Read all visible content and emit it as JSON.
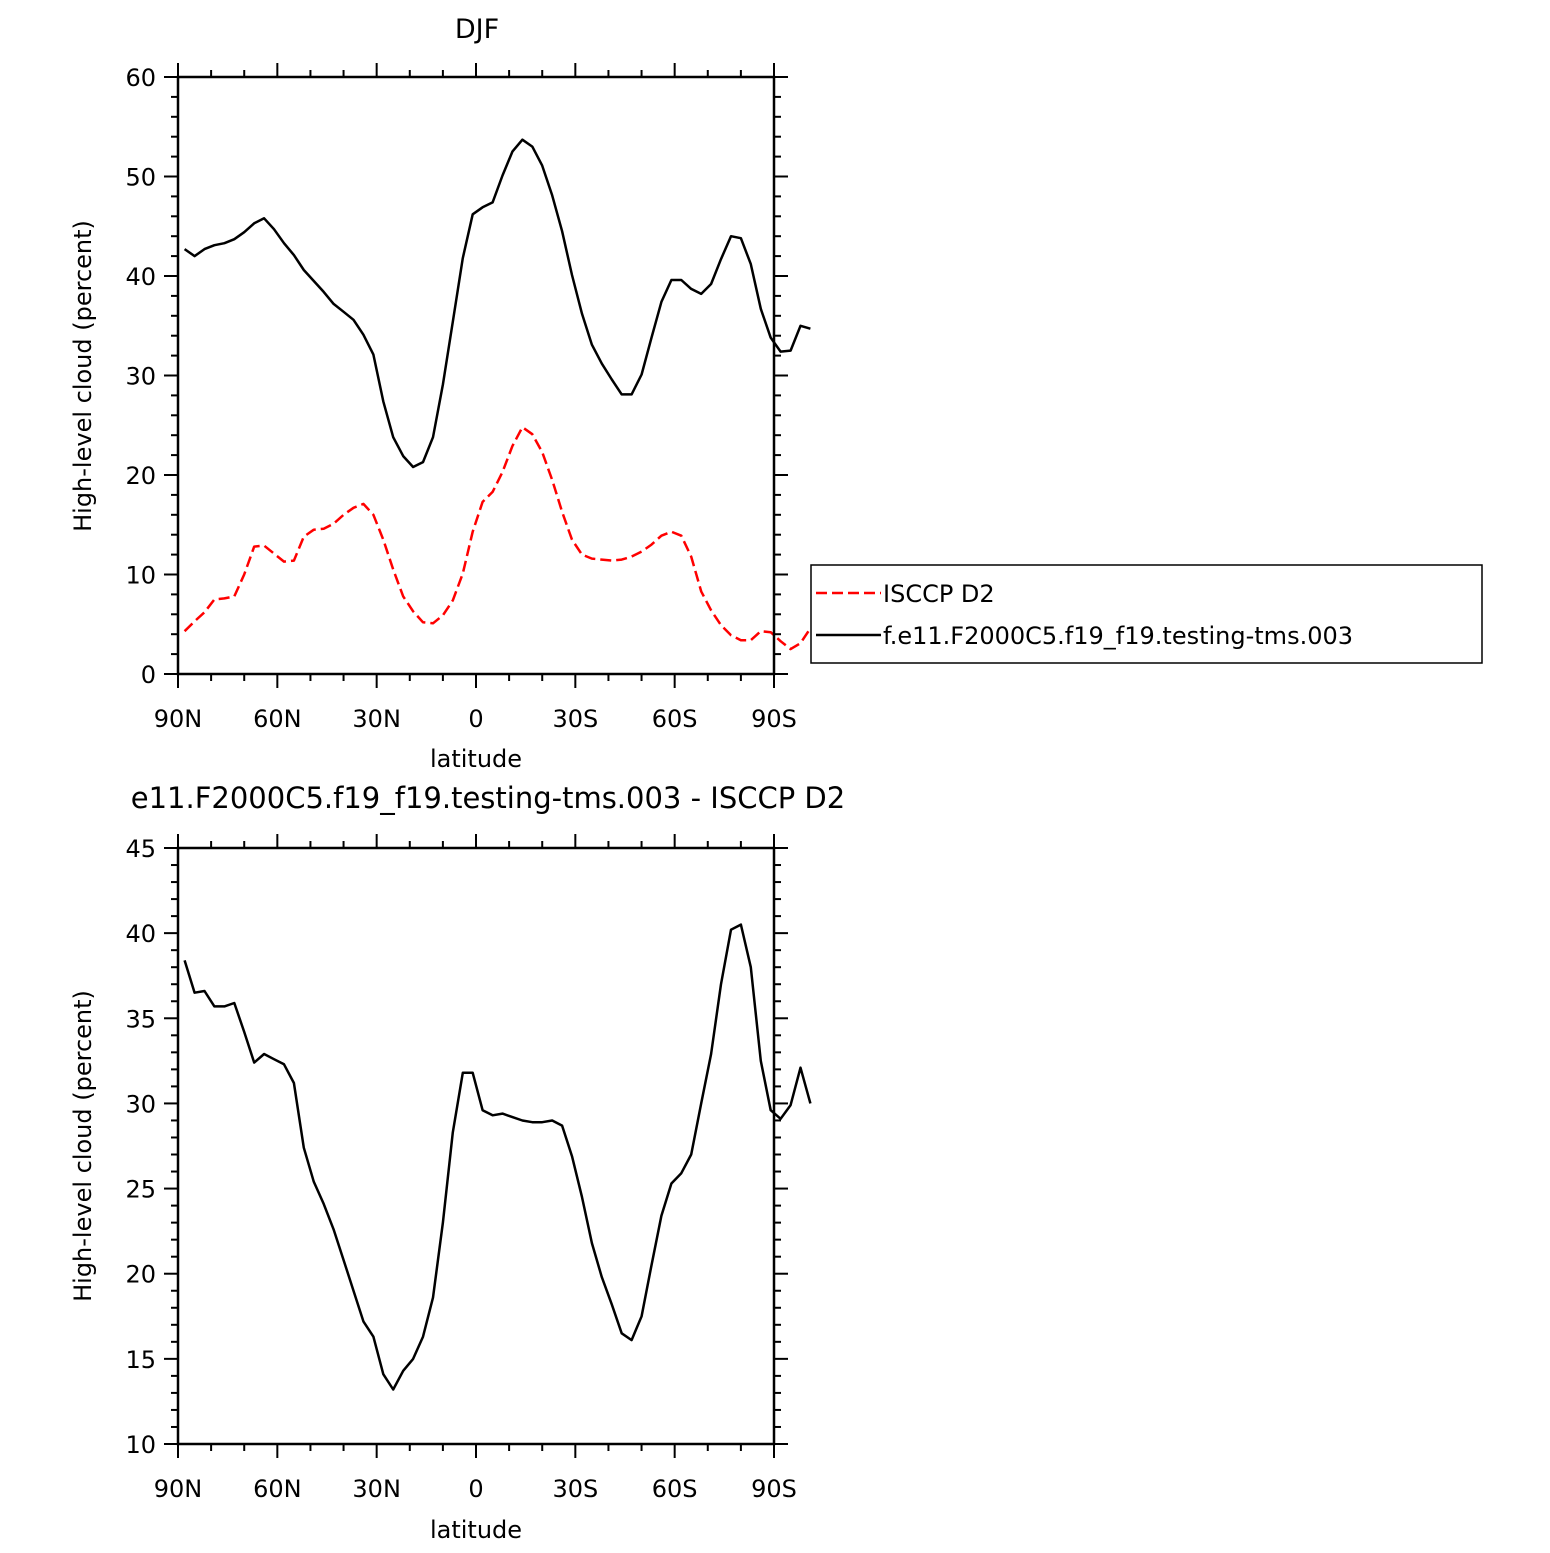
{
  "chart_data": [
    {
      "type": "line",
      "title": "DJF",
      "xlabel": "latitude",
      "ylabel": "High-level cloud (percent)",
      "xlim": [
        90,
        -90
      ],
      "ylim": [
        0,
        60
      ],
      "x_ticks": [
        {
          "value": 90,
          "label": "90N"
        },
        {
          "value": 60,
          "label": "60N"
        },
        {
          "value": 30,
          "label": "30N"
        },
        {
          "value": 0,
          "label": "0"
        },
        {
          "value": -30,
          "label": "30S"
        },
        {
          "value": -60,
          "label": "60S"
        },
        {
          "value": -90,
          "label": "90S"
        }
      ],
      "y_ticks": [
        0,
        10,
        20,
        30,
        40,
        50,
        60
      ],
      "legend_position": "right",
      "series": [
        {
          "name": "ISCCP D2",
          "color": "#ff0000",
          "style": "dashed",
          "points": [
            [
              88,
              4.3
            ],
            [
              85,
              5.3
            ],
            [
              82,
              6.2
            ],
            [
              79,
              7.5
            ],
            [
              76,
              7.6
            ],
            [
              73,
              7.8
            ],
            [
              70,
              10
            ],
            [
              67,
              12.8
            ],
            [
              64,
              12.9
            ],
            [
              61,
              12.1
            ],
            [
              58,
              11.3
            ],
            [
              55,
              11.4
            ],
            [
              52,
              13.8
            ],
            [
              49,
              14.5
            ],
            [
              46,
              14.6
            ],
            [
              43,
              15.1
            ],
            [
              40,
              16
            ],
            [
              37,
              16.7
            ],
            [
              34,
              17.1
            ],
            [
              31,
              16
            ],
            [
              28,
              13.5
            ],
            [
              25,
              10.5
            ],
            [
              22,
              7.8
            ],
            [
              19,
              6.3
            ],
            [
              16,
              5.2
            ],
            [
              13,
              5.1
            ],
            [
              10,
              5.9
            ],
            [
              7,
              7.4
            ],
            [
              4,
              10.1
            ],
            [
              1,
              14.3
            ],
            [
              -2,
              17.3
            ],
            [
              -5,
              18.3
            ],
            [
              -8,
              20.3
            ],
            [
              -11,
              22.9
            ],
            [
              -14,
              24.8
            ],
            [
              -17,
              24.1
            ],
            [
              -20,
              22.3
            ],
            [
              -23,
              19.5
            ],
            [
              -26,
              16.3
            ],
            [
              -29,
              13.5
            ],
            [
              -32,
              12.0
            ],
            [
              -35,
              11.6
            ],
            [
              -38,
              11.5
            ],
            [
              -41,
              11.4
            ],
            [
              -44,
              11.5
            ],
            [
              -47,
              11.8
            ],
            [
              -50,
              12.3
            ],
            [
              -53,
              13.0
            ],
            [
              -56,
              13.9
            ],
            [
              -59,
              14.3
            ],
            [
              -62,
              13.9
            ],
            [
              -65,
              11.8
            ],
            [
              -68,
              8.3
            ],
            [
              -71,
              6.4
            ],
            [
              -74,
              4.9
            ],
            [
              -77,
              3.9
            ],
            [
              -80,
              3.4
            ],
            [
              -83,
              3.4
            ],
            [
              -86,
              4.3
            ],
            [
              -89,
              4.2
            ],
            [
              -92,
              3.3
            ],
            [
              -95,
              2.5
            ],
            [
              -98,
              3.1
            ],
            [
              -101,
              4.6
            ]
          ]
        },
        {
          "name": "f.e11.F2000C5.f19_f19.testing-tms.003",
          "color": "#000000",
          "style": "solid",
          "points": [
            [
              88,
              42.7
            ],
            [
              85,
              42.0
            ],
            [
              82,
              42.7
            ],
            [
              79,
              43.1
            ],
            [
              76,
              43.3
            ],
            [
              73,
              43.7
            ],
            [
              70,
              44.4
            ],
            [
              67,
              45.3
            ],
            [
              64,
              45.8
            ],
            [
              61,
              44.7
            ],
            [
              58,
              43.3
            ],
            [
              55,
              42.1
            ],
            [
              52,
              40.6
            ],
            [
              49,
              39.5
            ],
            [
              46,
              38.4
            ],
            [
              43,
              37.2
            ],
            [
              40,
              36.4
            ],
            [
              37,
              35.6
            ],
            [
              34,
              34.1
            ],
            [
              31,
              32.1
            ],
            [
              28,
              27.4
            ],
            [
              25,
              23.8
            ],
            [
              22,
              21.9
            ],
            [
              19,
              20.8
            ],
            [
              16,
              21.3
            ],
            [
              13,
              23.8
            ],
            [
              10,
              29.1
            ],
            [
              7,
              35.4
            ],
            [
              4,
              41.8
            ],
            [
              1,
              46.2
            ],
            [
              -2,
              46.9
            ],
            [
              -5,
              47.4
            ],
            [
              -8,
              50.1
            ],
            [
              -11,
              52.5
            ],
            [
              -14,
              53.7
            ],
            [
              -17,
              53.0
            ],
            [
              -20,
              51.1
            ],
            [
              -23,
              48.1
            ],
            [
              -26,
              44.5
            ],
            [
              -29,
              40.1
            ],
            [
              -32,
              36.2
            ],
            [
              -35,
              33.1
            ],
            [
              -38,
              31.2
            ],
            [
              -41,
              29.6
            ],
            [
              -44,
              28.1
            ],
            [
              -47,
              28.1
            ],
            [
              -50,
              30.1
            ],
            [
              -53,
              33.8
            ],
            [
              -56,
              37.4
            ],
            [
              -59,
              39.6
            ],
            [
              -62,
              39.6
            ],
            [
              -65,
              38.7
            ],
            [
              -68,
              38.2
            ],
            [
              -71,
              39.2
            ],
            [
              -74,
              41.7
            ],
            [
              -77,
              44.0
            ],
            [
              -80,
              43.8
            ],
            [
              -83,
              41.2
            ],
            [
              -86,
              36.7
            ],
            [
              -89,
              33.8
            ],
            [
              -92,
              32.4
            ],
            [
              -95,
              32.5
            ],
            [
              -98,
              35.0
            ],
            [
              -101,
              34.7
            ]
          ]
        }
      ]
    },
    {
      "type": "line",
      "title": "e11.F2000C5.f19_f19.testing-tms.003 - ISCCP D2",
      "xlabel": "latitude",
      "ylabel": "High-level cloud (percent)",
      "xlim": [
        90,
        -90
      ],
      "ylim": [
        10,
        45
      ],
      "x_ticks": [
        {
          "value": 90,
          "label": "90N"
        },
        {
          "value": 60,
          "label": "60N"
        },
        {
          "value": 30,
          "label": "30N"
        },
        {
          "value": 0,
          "label": "0"
        },
        {
          "value": -30,
          "label": "30S"
        },
        {
          "value": -60,
          "label": "60S"
        },
        {
          "value": -90,
          "label": "90S"
        }
      ],
      "y_ticks": [
        10,
        15,
        20,
        25,
        30,
        35,
        40,
        45
      ],
      "series": [
        {
          "color": "#000000",
          "style": "solid",
          "points": [
            [
              88,
              38.4
            ],
            [
              85,
              36.5
            ],
            [
              82,
              36.6
            ],
            [
              79,
              35.7
            ],
            [
              76,
              35.7
            ],
            [
              73,
              35.9
            ],
            [
              70,
              34.2
            ],
            [
              67,
              32.4
            ],
            [
              64,
              32.9
            ],
            [
              61,
              32.6
            ],
            [
              58,
              32.3
            ],
            [
              55,
              31.2
            ],
            [
              52,
              27.4
            ],
            [
              49,
              25.4
            ],
            [
              46,
              24.1
            ],
            [
              43,
              22.6
            ],
            [
              40,
              20.8
            ],
            [
              37,
              19.0
            ],
            [
              34,
              17.2
            ],
            [
              31,
              16.3
            ],
            [
              28,
              14.1
            ],
            [
              25,
              13.2
            ],
            [
              22,
              14.3
            ],
            [
              19,
              15.0
            ],
            [
              16,
              16.3
            ],
            [
              13,
              18.6
            ],
            [
              10,
              23.0
            ],
            [
              7,
              28.3
            ],
            [
              4,
              31.8
            ],
            [
              1,
              31.8
            ],
            [
              -2,
              29.6
            ],
            [
              -5,
              29.3
            ],
            [
              -8,
              29.4
            ],
            [
              -11,
              29.2
            ],
            [
              -14,
              29.0
            ],
            [
              -17,
              28.9
            ],
            [
              -20,
              28.9
            ],
            [
              -23,
              29.0
            ],
            [
              -26,
              28.7
            ],
            [
              -29,
              26.9
            ],
            [
              -32,
              24.5
            ],
            [
              -35,
              21.8
            ],
            [
              -38,
              19.8
            ],
            [
              -41,
              18.2
            ],
            [
              -44,
              16.5
            ],
            [
              -47,
              16.1
            ],
            [
              -50,
              17.5
            ],
            [
              -53,
              20.5
            ],
            [
              -56,
              23.4
            ],
            [
              -59,
              25.3
            ],
            [
              -62,
              25.9
            ],
            [
              -65,
              27.0
            ],
            [
              -68,
              30.0
            ],
            [
              -71,
              32.9
            ],
            [
              -74,
              37.0
            ],
            [
              -77,
              40.2
            ],
            [
              -80,
              40.5
            ],
            [
              -83,
              38.0
            ],
            [
              -86,
              32.5
            ],
            [
              -89,
              29.6
            ],
            [
              -92,
              29.1
            ],
            [
              -95,
              29.9
            ],
            [
              -98,
              32.1
            ],
            [
              -101,
              30.0
            ]
          ]
        }
      ]
    }
  ]
}
